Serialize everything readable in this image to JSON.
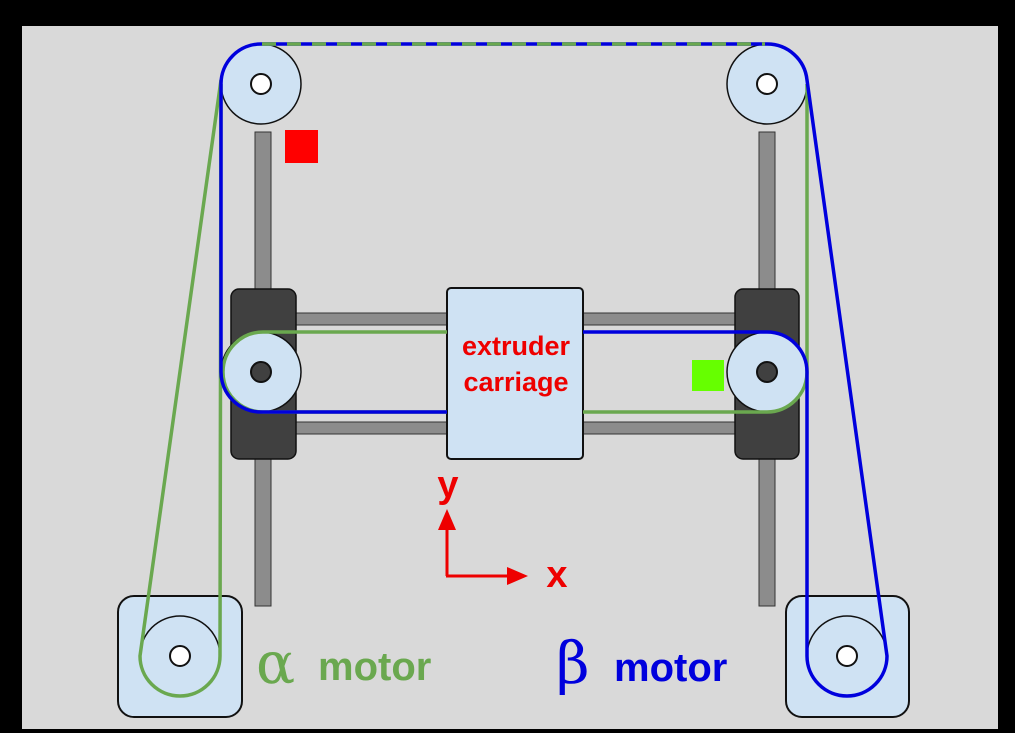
{
  "carriage": {
    "line1": "extruder",
    "line2": "carriage"
  },
  "axes": {
    "x_label": "x",
    "y_label": "y"
  },
  "motors": {
    "alpha": {
      "symbol": "α",
      "label": "motor"
    },
    "beta": {
      "symbol": "β",
      "label": "motor"
    }
  },
  "colors": {
    "background": "#d9d9d9",
    "alpha_belt": "#6aa84f",
    "beta_belt": "#0000dd",
    "axis_arrow": "#ee0000",
    "pulley_fill": "#cfe2f3",
    "block": "#404040",
    "rod": "#8c8c8c",
    "limit_red": "#ff0000",
    "limit_green": "#66ff00"
  }
}
